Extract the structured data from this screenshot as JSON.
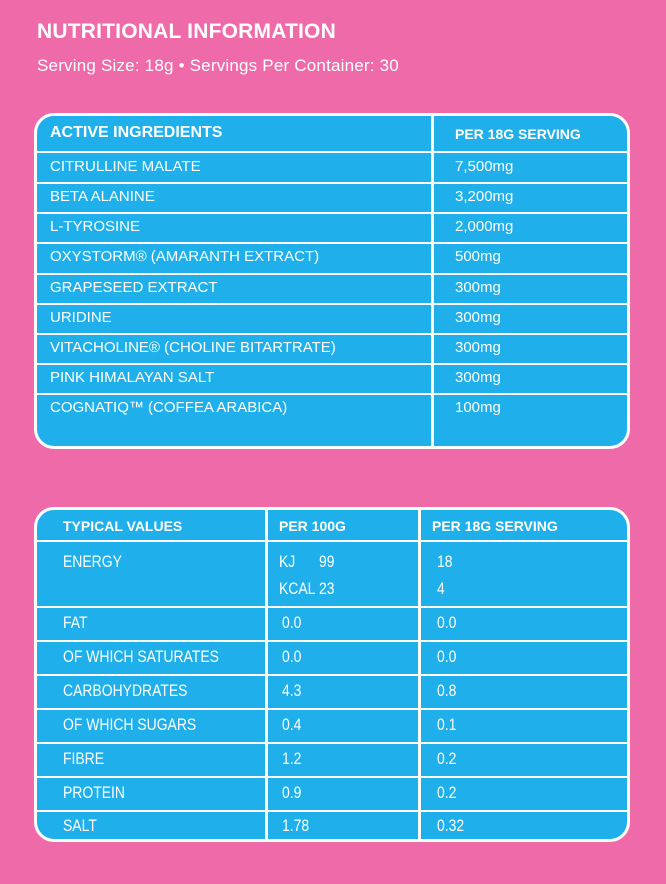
{
  "header": {
    "title": "NUTRITIONAL INFORMATION",
    "subtitle": "Serving Size: 18g • Servings Per Container: 30"
  },
  "active_table": {
    "col1_header": "ACTIVE INGREDIENTS",
    "col2_header": "PER 18G SERVING",
    "rows": [
      {
        "name": "CITRULLINE MALATE",
        "amount": "7,500mg"
      },
      {
        "name": "BETA ALANINE",
        "amount": "3,200mg"
      },
      {
        "name": "L-TYROSINE",
        "amount": "2,000mg"
      },
      {
        "name": "OXYSTORM® (AMARANTH EXTRACT)",
        "amount": "500mg"
      },
      {
        "name": "GRAPESEED EXTRACT",
        "amount": "300mg"
      },
      {
        "name": "URIDINE",
        "amount": "300mg"
      },
      {
        "name": "VITACHOLINE® (CHOLINE BITARTRATE)",
        "amount": "300mg"
      },
      {
        "name": "PINK HIMALAYAN SALT",
        "amount": "300mg"
      },
      {
        "name": "COGNATIQ™ (COFFEA ARABICA)",
        "amount": "100mg"
      }
    ]
  },
  "typical_table": {
    "col1_header": "TYPICAL VALUES",
    "col2_header": "PER 100G",
    "col3_header": "PER 18G SERVING",
    "energy": {
      "name": "ENERGY",
      "kj_label": "KJ",
      "kj_100g": "99",
      "kj_serving": "18",
      "kcal_label": "KCAL",
      "kcal_100g": "23",
      "kcal_serving": "4"
    },
    "rows": [
      {
        "name": "FAT",
        "per100": "0.0",
        "serving": "0.0"
      },
      {
        "name": "OF WHICH SATURATES",
        "per100": "0.0",
        "serving": "0.0"
      },
      {
        "name": "CARBOHYDRATES",
        "per100": "4.3",
        "serving": "0.8"
      },
      {
        "name": "OF WHICH SUGARS",
        "per100": "0.4",
        "serving": "0.1"
      },
      {
        "name": "FIBRE",
        "per100": "1.2",
        "serving": "0.2"
      },
      {
        "name": "PROTEIN",
        "per100": "0.9",
        "serving": "0.2"
      },
      {
        "name": "SALT",
        "per100": "1.78",
        "serving": "0.32"
      }
    ]
  },
  "colors": {
    "background": "#ee6aa9",
    "panel": "#1fb0ec",
    "text": "#ffffff"
  }
}
